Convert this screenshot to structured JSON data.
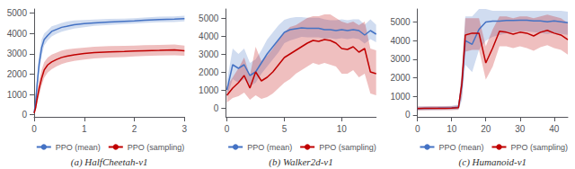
{
  "chart_data": [
    {
      "type": "line",
      "title": "(a) HalfCheetah-v1",
      "xlim": [
        0,
        3
      ],
      "ylim": [
        -100,
        5200
      ],
      "xticks": [
        0,
        1,
        2,
        3
      ],
      "yticks": [
        0,
        1000,
        2000,
        3000,
        4000,
        5000
      ],
      "legend": "lower right",
      "x": [
        0.0,
        0.03,
        0.06,
        0.1,
        0.15,
        0.2,
        0.27,
        0.35,
        0.45,
        0.55,
        0.65,
        0.8,
        1.0,
        1.2,
        1.5,
        1.8,
        2.0,
        2.2,
        2.5,
        2.8,
        3.0
      ],
      "series": [
        {
          "name": "PPO (mean)",
          "color": "#4472C4",
          "values": [
            100,
            600,
            1500,
            2500,
            3300,
            3700,
            3900,
            4100,
            4200,
            4300,
            4350,
            4430,
            4480,
            4520,
            4560,
            4590,
            4610,
            4650,
            4680,
            4700,
            4730
          ],
          "lo": [
            50,
            400,
            1200,
            2100,
            2900,
            3400,
            3650,
            3850,
            3980,
            4080,
            4150,
            4240,
            4310,
            4370,
            4420,
            4460,
            4480,
            4520,
            4545,
            4565,
            4590
          ],
          "hi": [
            180,
            900,
            1900,
            3000,
            3700,
            4000,
            4150,
            4350,
            4430,
            4520,
            4580,
            4640,
            4660,
            4680,
            4710,
            4730,
            4745,
            4785,
            4820,
            4840,
            4870
          ]
        },
        {
          "name": "PPO (sampling)",
          "color": "#C00000",
          "values": [
            80,
            350,
            800,
            1300,
            1800,
            2200,
            2450,
            2600,
            2720,
            2820,
            2880,
            2950,
            3010,
            3060,
            3090,
            3110,
            3130,
            3150,
            3165,
            3185,
            3150
          ],
          "lo": [
            30,
            200,
            550,
            950,
            1450,
            1820,
            2070,
            2240,
            2380,
            2490,
            2570,
            2650,
            2720,
            2770,
            2810,
            2840,
            2870,
            2890,
            2910,
            2930,
            2900
          ],
          "hi": [
            140,
            500,
            1100,
            1700,
            2200,
            2580,
            2820,
            2960,
            3060,
            3160,
            3210,
            3260,
            3300,
            3350,
            3380,
            3390,
            3400,
            3420,
            3430,
            3450,
            3400
          ]
        }
      ]
    },
    {
      "type": "line",
      "title": "(b) Walker2d-v1",
      "xlim": [
        -0.1,
        13
      ],
      "ylim": [
        -500,
        5500
      ],
      "xticks": [
        0,
        5,
        10
      ],
      "yticks": [
        0,
        1000,
        2000,
        3000,
        4000,
        5000
      ],
      "legend": "lower right",
      "x": [
        0,
        0.5,
        1.0,
        1.5,
        2.0,
        2.5,
        3.0,
        3.5,
        4.0,
        4.5,
        5.0,
        5.5,
        6.0,
        6.5,
        7.0,
        7.5,
        8.0,
        8.5,
        9.0,
        9.5,
        10.0,
        10.5,
        11.0,
        11.5,
        12.0,
        12.5,
        13.0
      ],
      "series": [
        {
          "name": "PPO (mean)",
          "color": "#4472C4",
          "values": [
            1000,
            2400,
            2200,
            2400,
            1800,
            2000,
            2500,
            3000,
            3400,
            3800,
            4200,
            4350,
            4400,
            4450,
            4430,
            4430,
            4430,
            4350,
            4350,
            4300,
            4350,
            4300,
            4350,
            4300,
            4050,
            4300,
            4100
          ],
          "lo": [
            600,
            1600,
            1400,
            1600,
            1200,
            1400,
            1900,
            2300,
            2700,
            3100,
            3600,
            3750,
            3850,
            3950,
            3930,
            3930,
            3930,
            3850,
            3870,
            3820,
            3870,
            3820,
            3870,
            3820,
            3580,
            3820,
            3650
          ],
          "hi": [
            1500,
            3300,
            3000,
            3300,
            2500,
            2700,
            3200,
            3800,
            4200,
            4600,
            4900,
            5000,
            5050,
            5050,
            5010,
            5010,
            5010,
            4920,
            4870,
            4870,
            4920,
            4870,
            4920,
            4920,
            4620,
            4920,
            4620
          ]
        },
        {
          "name": "PPO (sampling)",
          "color": "#C00000",
          "values": [
            700,
            1100,
            1400,
            1800,
            1100,
            2000,
            1500,
            1700,
            2000,
            2400,
            2800,
            3000,
            3200,
            3400,
            3600,
            3750,
            3700,
            3800,
            3750,
            3600,
            3300,
            3250,
            3400,
            3100,
            3300,
            2000,
            1900
          ],
          "lo": [
            300,
            550,
            650,
            850,
            450,
            700,
            500,
            600,
            800,
            1100,
            1400,
            1600,
            1900,
            2100,
            2300,
            2500,
            2400,
            2500,
            2400,
            2300,
            1900,
            1900,
            2100,
            1700,
            1900,
            800,
            700
          ],
          "hi": [
            1200,
            1700,
            2200,
            2800,
            1800,
            3400,
            2600,
            2900,
            3300,
            3800,
            4200,
            4500,
            4600,
            4800,
            5000,
            5100,
            5100,
            5200,
            5200,
            5000,
            4800,
            4700,
            4800,
            4600,
            4800,
            3300,
            3200
          ]
        }
      ]
    },
    {
      "type": "line",
      "title": "(c) Humanoid-v1",
      "xlim": [
        0,
        44
      ],
      "ylim": [
        -100,
        5700
      ],
      "xticks": [
        0,
        10,
        20,
        30,
        40
      ],
      "yticks": [
        0,
        1000,
        2000,
        3000,
        4000,
        5000
      ],
      "legend": "lower right",
      "x": [
        0,
        2,
        4,
        6,
        8,
        10,
        12,
        13,
        14,
        16,
        18,
        20,
        22,
        24,
        26,
        28,
        30,
        32,
        34,
        36,
        38,
        40,
        42,
        44
      ],
      "series": [
        {
          "name": "PPO (mean)",
          "color": "#4472C4",
          "values": [
            350,
            360,
            365,
            368,
            375,
            385,
            420,
            1600,
            4000,
            3800,
            4600,
            5000,
            5050,
            5050,
            5080,
            5080,
            5100,
            5100,
            5060,
            5060,
            5010,
            5060,
            5010,
            4960
          ],
          "lo": [
            250,
            260,
            265,
            268,
            270,
            275,
            300,
            800,
            2700,
            2300,
            3500,
            4000,
            4200,
            4300,
            4400,
            4450,
            4500,
            4500,
            4450,
            4410,
            4360,
            4410,
            4360,
            4310
          ],
          "hi": [
            450,
            465,
            470,
            473,
            480,
            498,
            560,
            2400,
            5300,
            5300,
            5700,
            5700,
            5600,
            5600,
            5600,
            5600,
            5600,
            5600,
            5600,
            5600,
            5600,
            5600,
            5600,
            5550
          ]
        },
        {
          "name": "PPO (sampling)",
          "color": "#C00000",
          "values": [
            350,
            355,
            360,
            362,
            365,
            370,
            390,
            1700,
            4300,
            4400,
            4400,
            2800,
            3600,
            4500,
            4450,
            4350,
            4450,
            4400,
            4250,
            4450,
            4550,
            4400,
            4300,
            4050
          ],
          "lo": [
            250,
            255,
            258,
            260,
            262,
            265,
            280,
            1000,
            3400,
            3500,
            3500,
            1900,
            2600,
            3700,
            3700,
            3600,
            3700,
            3600,
            3450,
            3650,
            3750,
            3600,
            3500,
            3250
          ],
          "hi": [
            450,
            458,
            465,
            467,
            470,
            478,
            505,
            2400,
            5200,
            5200,
            5200,
            3700,
            4600,
            5300,
            5300,
            5200,
            5300,
            5300,
            5200,
            5300,
            5400,
            5300,
            5200,
            4950
          ]
        }
      ]
    }
  ]
}
